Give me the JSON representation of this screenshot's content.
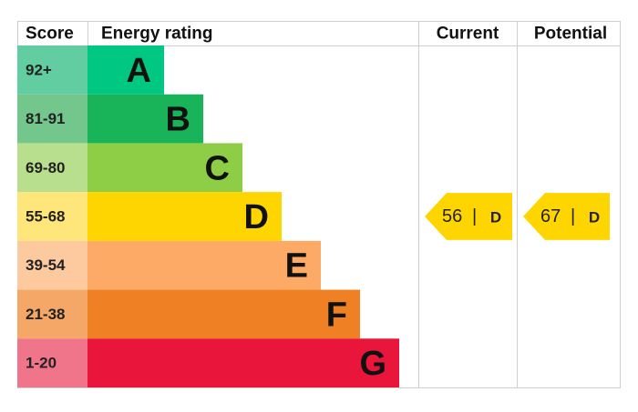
{
  "header": {
    "score": "Score",
    "energy_rating": "Energy rating",
    "current": "Current",
    "potential": "Potential"
  },
  "bands": [
    {
      "score": "92+",
      "rating": "A",
      "color": "#00c781",
      "score_color": "#62cda0"
    },
    {
      "score": "81-91",
      "rating": "B",
      "color": "#19b459",
      "score_color": "#74c78c"
    },
    {
      "score": "69-80",
      "rating": "C",
      "color": "#8dce46",
      "score_color": "#b8df8e"
    },
    {
      "score": "55-68",
      "rating": "D",
      "color": "#ffd500",
      "score_color": "#ffe67a"
    },
    {
      "score": "39-54",
      "rating": "E",
      "color": "#fcaa65",
      "score_color": "#fdcaa0"
    },
    {
      "score": "21-38",
      "rating": "F",
      "color": "#ef8023",
      "score_color": "#f4a766"
    },
    {
      "score": "1-20",
      "rating": "G",
      "color": "#e9153b",
      "score_color": "#f0758b"
    }
  ],
  "current": {
    "score": 56,
    "separator": "|",
    "rating": "D",
    "color": "#ffd500"
  },
  "potential": {
    "score": 67,
    "separator": "|",
    "rating": "D",
    "color": "#ffd500"
  }
}
